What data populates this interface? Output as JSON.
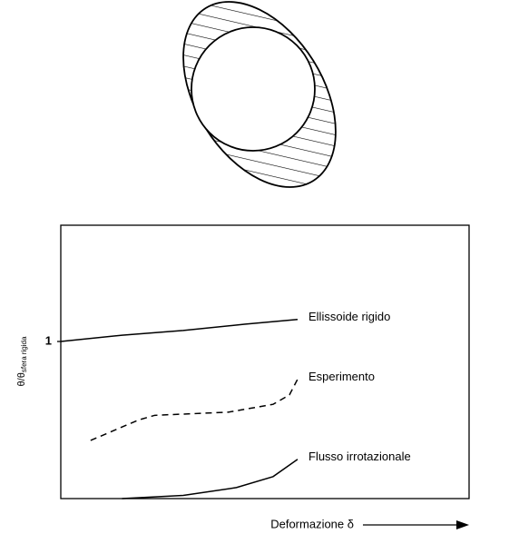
{
  "chart_data": {
    "type": "line",
    "ylabel": {
      "main": "θ/θ",
      "sub": "sfera rigida"
    },
    "xlabel": "Deformazione δ",
    "xlim": [
      0,
      1
    ],
    "ylim": [
      0,
      1.74
    ],
    "yticks": [
      1
    ],
    "series": [
      {
        "name": "Ellissoide rigido",
        "color": "#000000",
        "dashed": false,
        "x": [
          0,
          0.15,
          0.3,
          0.45,
          0.58
        ],
        "values": [
          1,
          1.04,
          1.07,
          1.11,
          1.14
        ]
      },
      {
        "name": "Esperimento",
        "color": "#000000",
        "dashed": true,
        "x": [
          0.073,
          0.19,
          0.23,
          0.41,
          0.52,
          0.56,
          0.58
        ],
        "values": [
          0.37,
          0.5,
          0.53,
          0.55,
          0.6,
          0.66,
          0.76
        ]
      },
      {
        "name": "Flusso irrotazionale",
        "color": "#000000",
        "dashed": false,
        "x": [
          0.15,
          0.3,
          0.43,
          0.52,
          0.58
        ],
        "values": [
          0,
          0.02,
          0.07,
          0.14,
          0.25
        ]
      }
    ]
  }
}
